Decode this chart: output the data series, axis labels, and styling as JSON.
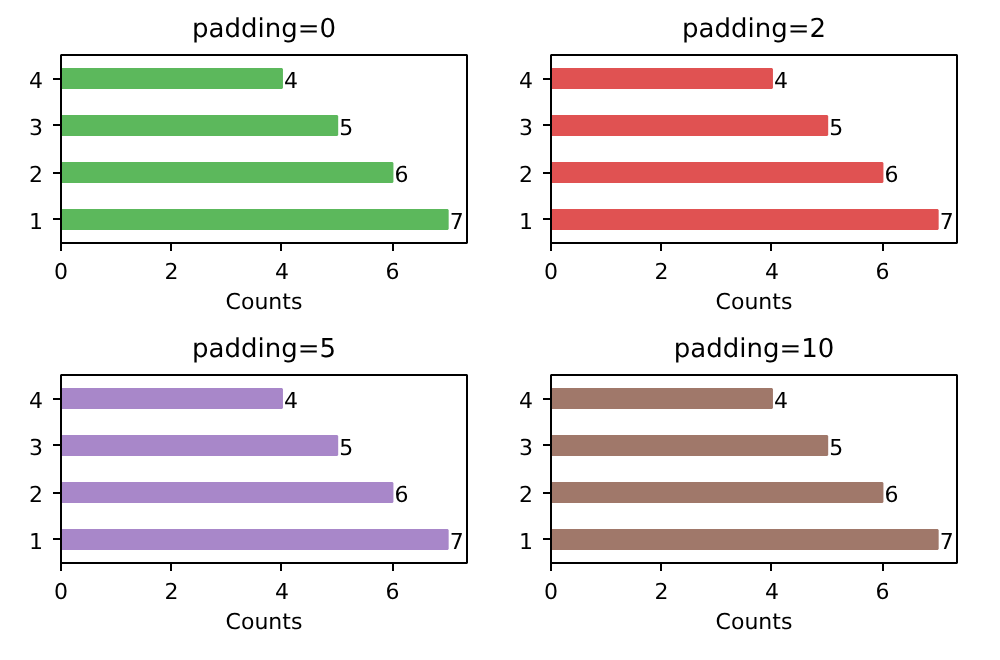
{
  "chart_data": [
    {
      "type": "bar",
      "orientation": "horizontal",
      "title": "padding=0",
      "xlabel": "Counts",
      "categories": [
        "4",
        "3",
        "2",
        "1"
      ],
      "values": [
        4,
        5,
        6,
        7
      ],
      "color": "#5cb85c",
      "xlim": [
        0,
        7.35
      ],
      "xticks": [
        0,
        2,
        4,
        6
      ],
      "data_labels": true,
      "grid": false
    },
    {
      "type": "bar",
      "orientation": "horizontal",
      "title": "padding=2",
      "xlabel": "Counts",
      "categories": [
        "4",
        "3",
        "2",
        "1"
      ],
      "values": [
        4,
        5,
        6,
        7
      ],
      "color": "#e05252",
      "xlim": [
        0,
        7.35
      ],
      "xticks": [
        0,
        2,
        4,
        6
      ],
      "data_labels": true,
      "grid": false
    },
    {
      "type": "bar",
      "orientation": "horizontal",
      "title": "padding=5",
      "xlabel": "Counts",
      "categories": [
        "4",
        "3",
        "2",
        "1"
      ],
      "values": [
        4,
        5,
        6,
        7
      ],
      "color": "#a887c9",
      "xlim": [
        0,
        7.35
      ],
      "xticks": [
        0,
        2,
        4,
        6
      ],
      "data_labels": true,
      "grid": false
    },
    {
      "type": "bar",
      "orientation": "horizontal",
      "title": "padding=10",
      "xlabel": "Counts",
      "categories": [
        "4",
        "3",
        "2",
        "1"
      ],
      "values": [
        4,
        5,
        6,
        7
      ],
      "color": "#a0786a",
      "xlim": [
        0,
        7.35
      ],
      "xticks": [
        0,
        2,
        4,
        6
      ],
      "data_labels": true,
      "grid": false
    }
  ]
}
